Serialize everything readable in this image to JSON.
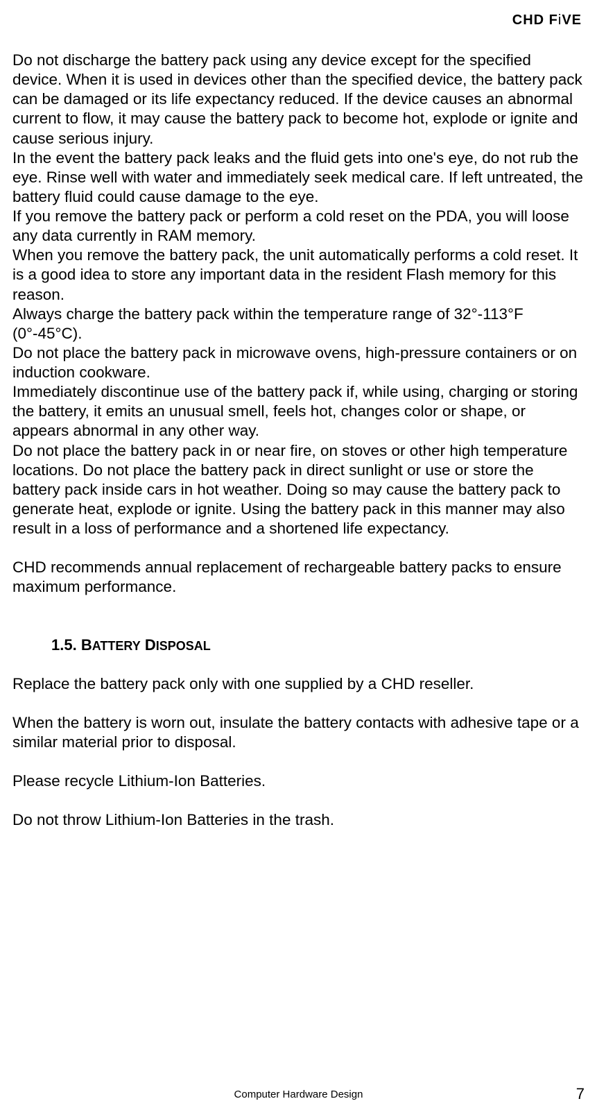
{
  "header": {
    "brand_prefix": "CHD F",
    "brand_i": "i",
    "brand_suffix": "VE"
  },
  "body": {
    "p1": "Do not discharge the battery pack using any device except for the specified device. When it is used in devices other than the specified device, the battery pack can be damaged or its life expectancy reduced. If the device causes an abnormal current to flow, it may cause the battery pack to become hot, explode or ignite and cause serious injury.",
    "p2": "In the event the battery pack leaks and the fluid gets into one's eye, do not rub the eye. Rinse well with water and immediately seek medical care. If left untreated, the battery fluid could cause damage to the eye.",
    "p3": "If you remove the battery pack or perform a cold reset on the PDA, you will loose any data currently in RAM memory.",
    "p4": "When you remove the battery pack, the unit automatically performs a cold reset. It is a good idea to store any important data in the resident Flash memory for this reason.",
    "p5": "Always charge the battery pack within the temperature range of 32°-113°F (0°-45°C).",
    "p6": "Do not place the battery pack in microwave ovens, high-pressure containers or on induction cookware.",
    "p7": "Immediately discontinue use of the battery pack if, while using, charging or storing the battery, it emits an unusual smell, feels hot, changes color or shape, or appears abnormal in any other way.",
    "p8": "Do not place the battery pack in or near fire, on stoves or other high temperature locations. Do not place the battery pack in direct sunlight or use or store the battery pack inside cars in hot weather. Doing so may cause the battery pack to generate heat, explode or ignite. Using the battery pack in this manner may also result in a loss of performance and a shortened life expectancy.",
    "p9": "CHD recommends annual replacement of rechargeable battery packs to ensure maximum performance."
  },
  "section": {
    "number": "1.5. ",
    "title_b": "B",
    "title_attery": "ATTERY",
    "title_d": "D",
    "title_isposal": "ISPOSAL"
  },
  "disposal": {
    "p1": "Replace the battery pack only with one supplied by a CHD reseller.",
    "p2": "When the battery is worn out, insulate the battery contacts with adhesive tape or a similar material prior to disposal.",
    "p3": "Please recycle Lithium-Ion Batteries.",
    "p4": "Do not throw Lithium-Ion Batteries in the trash."
  },
  "footer": {
    "center": "Computer Hardware Design",
    "page": "7"
  },
  "style": {
    "body_font_size": 22.5,
    "heading_font_size": 22,
    "footer_font_size": 15,
    "page_font_size": 22,
    "text_color": "#000000",
    "bg_color": "#ffffff"
  }
}
